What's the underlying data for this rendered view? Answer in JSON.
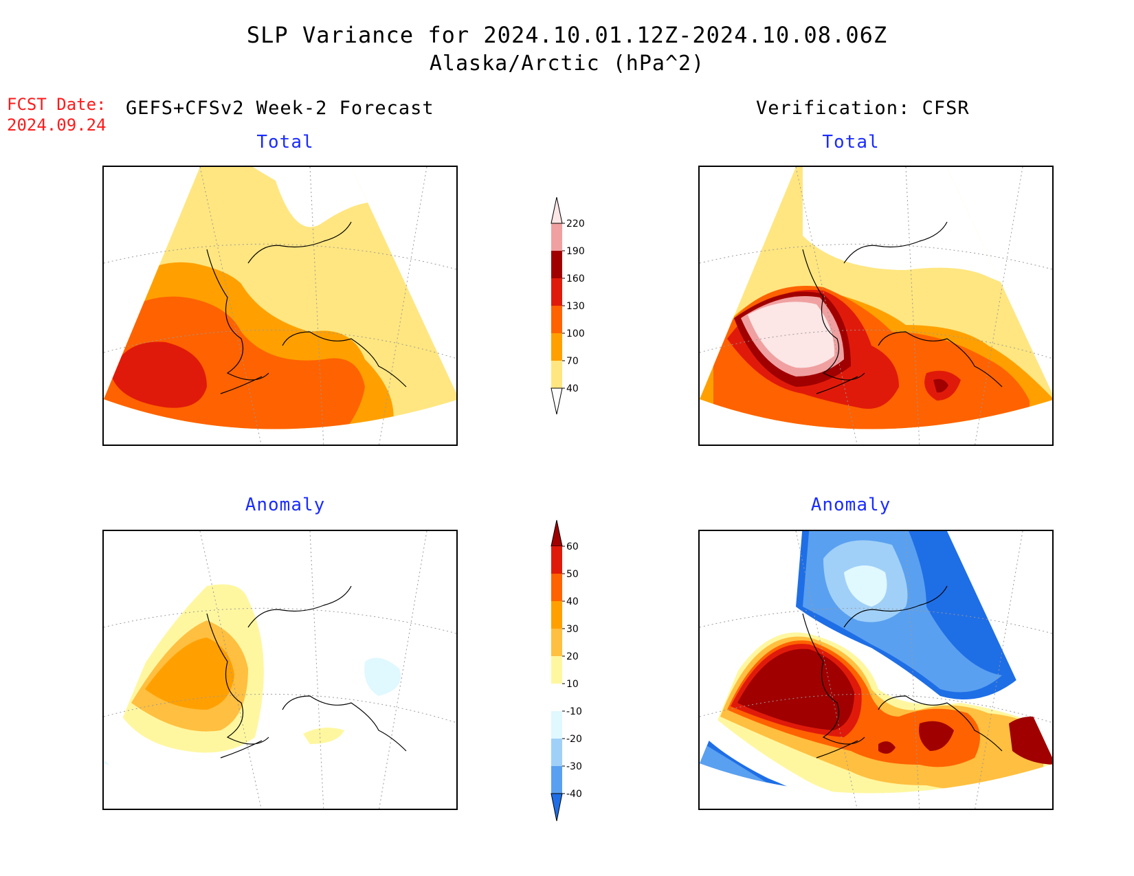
{
  "header": {
    "title_line1": "SLP Variance for 2024.10.01.12Z-2024.10.08.06Z",
    "title_line2": "Alaska/Arctic (hPa^2)",
    "fcst_label": "FCST Date:",
    "fcst_date": "2024.09.24",
    "left_header": "GEFS+CFSv2 Week-2 Forecast",
    "right_header": "Verification: CFSR"
  },
  "panels": {
    "forecast_total": {
      "title": "Total"
    },
    "verif_total": {
      "title": "Total"
    },
    "forecast_anomaly": {
      "title": "Anomaly"
    },
    "verif_anomaly": {
      "title": "Anomaly"
    }
  },
  "colorbars": {
    "total": {
      "labels": [
        "220",
        "190",
        "160",
        "130",
        "100",
        "70",
        "40"
      ],
      "colors": [
        "#fce6e6",
        "#f0a0a0",
        "#a00000",
        "#e01a0a",
        "#ff6200",
        "#ffa000",
        "#ffe680",
        "#ffffff"
      ]
    },
    "anomaly": {
      "labels": [
        "60",
        "50",
        "40",
        "30",
        "20",
        "10",
        "-10",
        "-20",
        "-30",
        "-40"
      ],
      "colors": [
        "#a00000",
        "#e01a0a",
        "#ff6200",
        "#ffa000",
        "#ffbf40",
        "#fff7a0",
        "#ffffff",
        "#e0f8ff",
        "#a0d0f8",
        "#5aa0f0",
        "#1e6ee6"
      ]
    }
  },
  "colors": {
    "title_blue": "#1a2cff",
    "fcst_red": "#ff1a1a"
  }
}
